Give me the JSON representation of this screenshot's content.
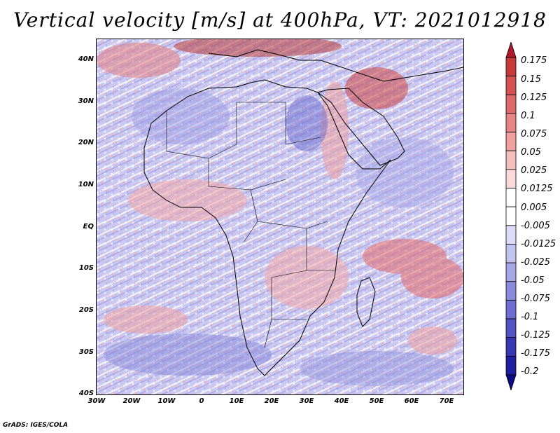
{
  "title": "Vertical velocity [m/s] at 400hPa, VT: 2021012918",
  "credit": "GrADS: IGES/COLA",
  "map": {
    "region": "Africa",
    "lat_labels": [
      "40N",
      "30N",
      "20N",
      "10N",
      "EQ",
      "10S",
      "20S",
      "30S",
      "40S"
    ],
    "lon_labels": [
      "30W",
      "20W",
      "10W",
      "0",
      "10E",
      "20E",
      "30E",
      "40E",
      "50E",
      "60E",
      "70E"
    ]
  },
  "colorbar": {
    "labels": [
      "0.175",
      "0.15",
      "0.125",
      "0.1",
      "0.075",
      "0.05",
      "0.025",
      "0.0125",
      "0.005",
      "-0.005",
      "-0.0125",
      "-0.025",
      "-0.05",
      "-0.075",
      "-0.1",
      "-0.125",
      "-0.175",
      "-0.2"
    ],
    "colors": [
      "#b2182b",
      "#c83a3a",
      "#d65252",
      "#e06a6a",
      "#e88585",
      "#f0a0a0",
      "#f6bdbd",
      "#fadada",
      "#ffffff",
      "#ffffff",
      "#dcdcf6",
      "#c3c3ef",
      "#a6a6e6",
      "#8a8adc",
      "#6e6ed2",
      "#5353c5",
      "#3838b4",
      "#1f1fa0",
      "#0b0b82"
    ]
  }
}
